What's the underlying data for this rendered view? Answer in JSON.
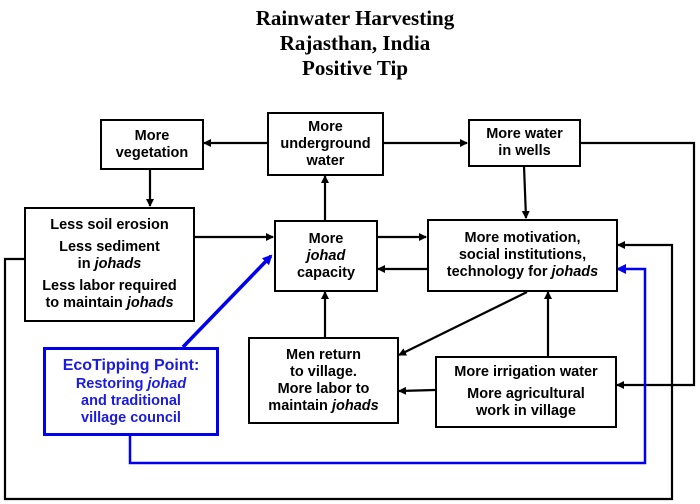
{
  "title": {
    "line1": "Rainwater Harvesting",
    "line2": "Rajasthan, India",
    "line3": "Positive Tip"
  },
  "nodes": {
    "vegetation": {
      "l1": "More",
      "l2": "vegetation"
    },
    "underground": {
      "l1": "More",
      "l2": "underground",
      "l3": "water"
    },
    "wells": {
      "l1": "More water",
      "l2": "in wells"
    },
    "erosion": {
      "l1": "Less soil erosion",
      "l2": "Less sediment",
      "l3a": "in ",
      "l3b": "johads",
      "l4": "Less labor required",
      "l5a": "to maintain ",
      "l5b": "johads"
    },
    "capacity": {
      "l1": "More",
      "l2": "johad",
      "l3": "capacity"
    },
    "motivation": {
      "l1": "More motivation,",
      "l2": "social institutions,",
      "l3a": "technology for ",
      "l3b": "johads"
    },
    "men": {
      "l1": "Men return",
      "l2": "to village.",
      "l3": "More labor to",
      "l4a": "maintain ",
      "l4b": "johads"
    },
    "irrigation": {
      "l1": "More irrigation water",
      "l2": "More agricultural",
      "l3": "work in village"
    },
    "ecotipping": {
      "l1": "EcoTipping Point:",
      "l2a": "Restoring ",
      "l2b": "johad",
      "l3": "and traditional",
      "l4": "village council"
    }
  },
  "colors": {
    "arrow": "#000000",
    "tipping_point": "#0000ee"
  }
}
